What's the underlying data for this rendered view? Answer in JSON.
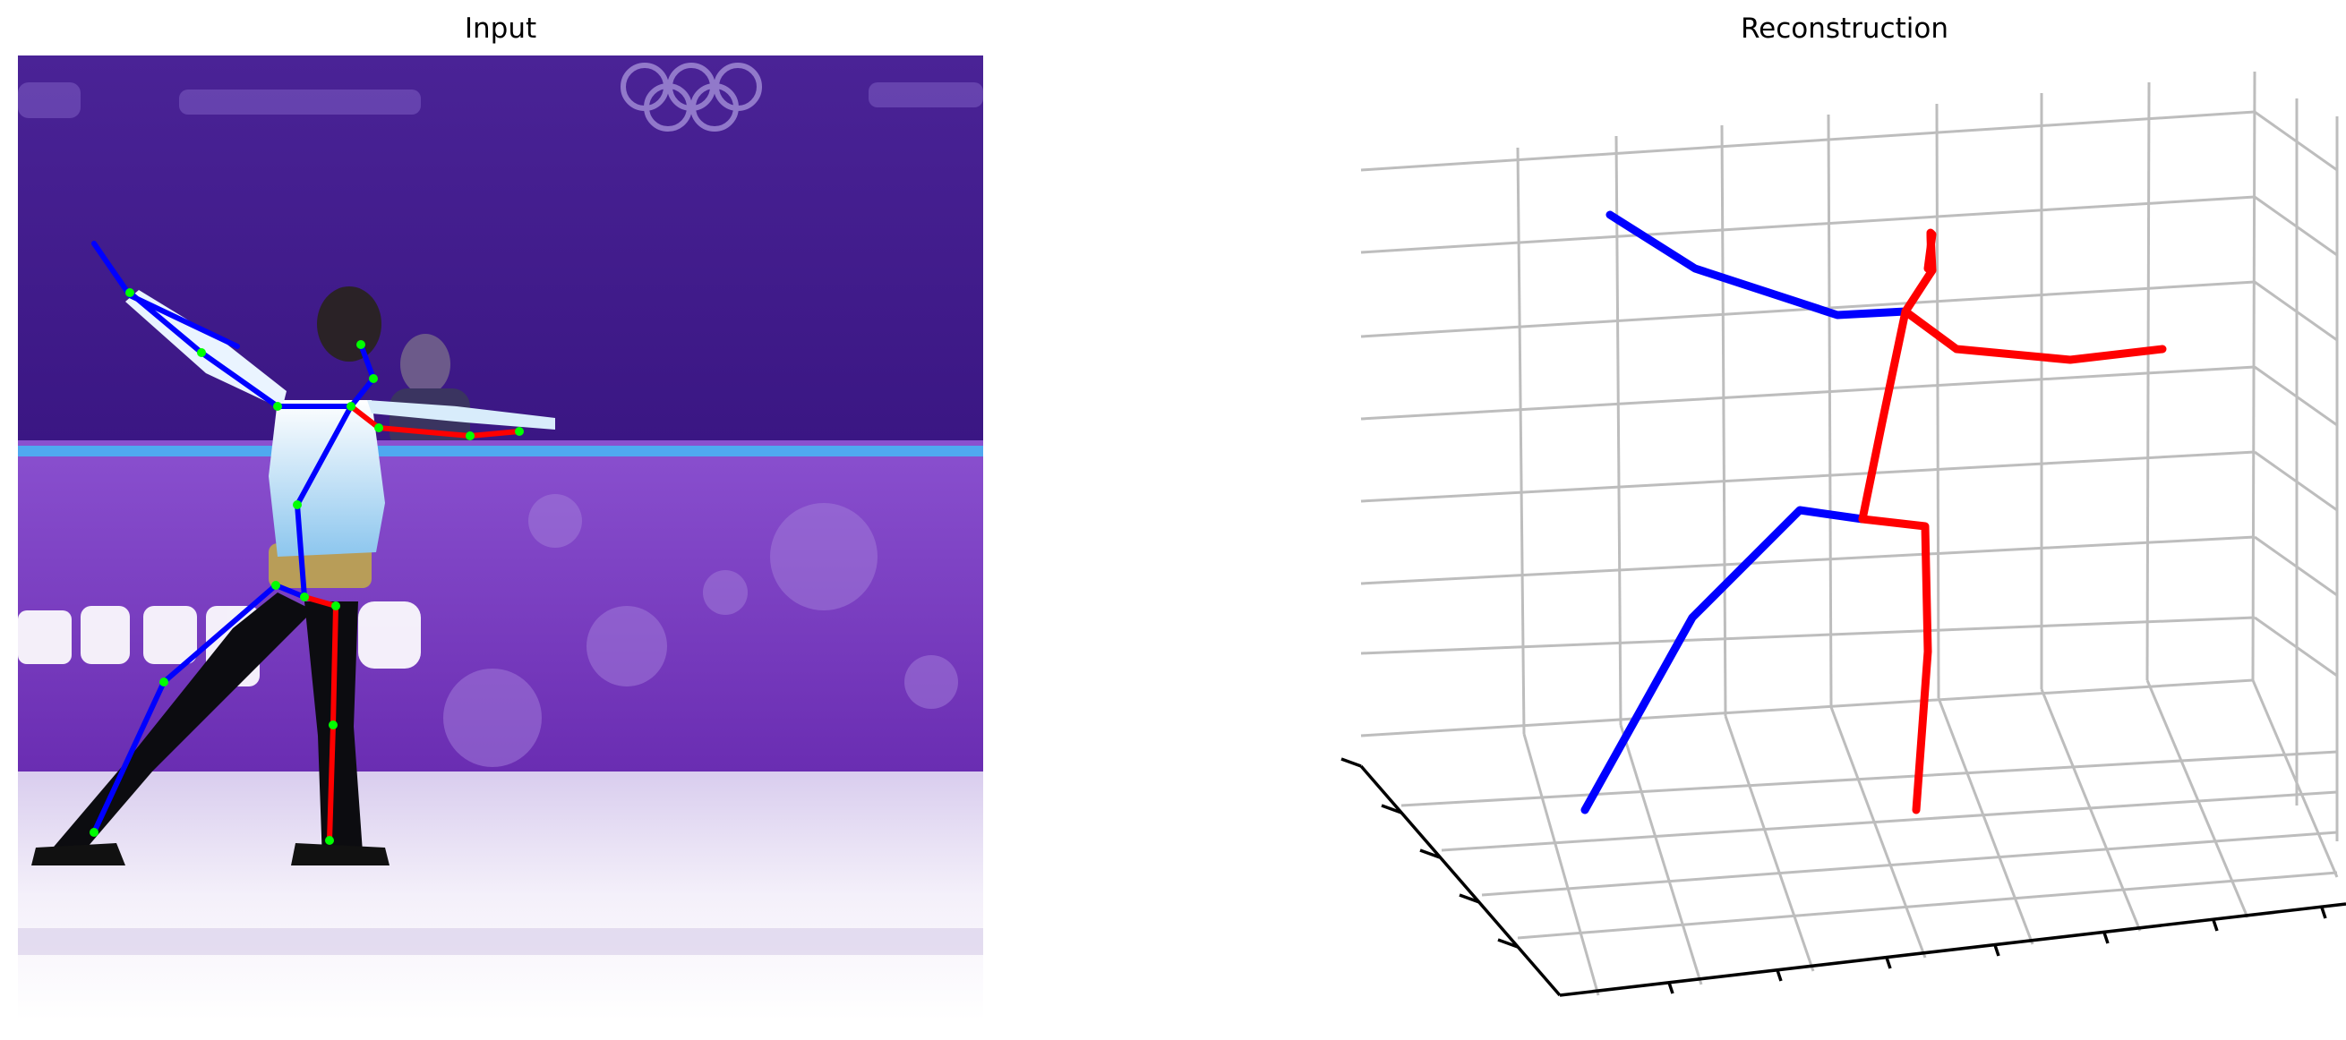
{
  "panels": {
    "left_title": "Input",
    "right_title": "Reconstruction"
  },
  "colors": {
    "left_limbs": "#0000ff",
    "right_limbs": "#ff0000",
    "joints": "#00ff00",
    "grid": "#bdbdbd",
    "axis": "#000000",
    "backdrop": "#3d1a8a",
    "board": "#7a3cc0",
    "ice": "#efeaf6"
  },
  "icons": {
    "olympic_rings": "olympic-rings-logo",
    "skater": "figure-skater-photo"
  }
}
